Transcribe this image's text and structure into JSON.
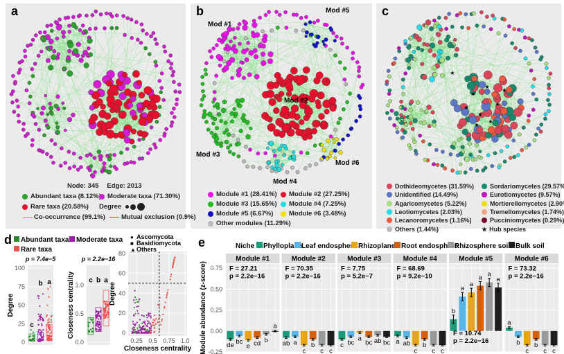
{
  "panel_labels": [
    "a",
    "b",
    "c",
    "d",
    "e"
  ],
  "panel_a": {
    "summary": {
      "node": "Node: 345",
      "edge": "Edge: 2013"
    },
    "legend": [
      {
        "label": "Abundant taxa  (8.12%)",
        "color": "#2ca02c"
      },
      {
        "label": "Moderate taxa (71.30%)",
        "color": "#d41cd4"
      },
      {
        "label": "Rare taxa (20.58%)",
        "color": "#e8112d"
      }
    ],
    "degree_label": "Degree",
    "edges": [
      {
        "label": "Co-occurrence (99.1%)",
        "color": "#33dd33"
      },
      {
        "label": "Mutual exclusion (0.9%)",
        "color": "#e83030"
      }
    ]
  },
  "panel_b": {
    "module_labels": [
      "Mod #1",
      "Mod #2",
      "Mod #3",
      "Mod #4",
      "Mod #5",
      "Mod #6"
    ],
    "legend": [
      {
        "label": "Module #1 (28.41%)",
        "color": "#ee11ee"
      },
      {
        "label": "Module #2 (27.25%)",
        "color": "#e8112d"
      },
      {
        "label": "Module #3 (15.65%)",
        "color": "#22bb22"
      },
      {
        "label": "Module #4 (7.25%)",
        "color": "#22dddd"
      },
      {
        "label": "Module #5 (6.67%)",
        "color": "#1111cc"
      },
      {
        "label": "Module #6 (3.48%)",
        "color": "#f5e000"
      },
      {
        "label": "Other modules (11.29%)",
        "color": "#bbbbbb"
      }
    ]
  },
  "panel_c": {
    "legend": [
      {
        "label": "Dothideomycetes (31.59%)",
        "color": "#d9465a"
      },
      {
        "label": "Sordariomycetes (29.57%)",
        "color": "#178a6e"
      },
      {
        "label": "Unidentified (14.49%)",
        "color": "#5b78c8"
      },
      {
        "label": "Eurotiomycetes (9.57%)",
        "color": "#c010c0"
      },
      {
        "label": "Agaricomycetes (5.22%)",
        "color": "#a4e080"
      },
      {
        "label": "Mortierellomycetes (2.90%)",
        "color": "#f0e000"
      },
      {
        "label": "Leotiomycetes (2.03%)",
        "color": "#22e0f0"
      },
      {
        "label": "Tremellomycetes (1.74%)",
        "color": "#f0a888"
      },
      {
        "label": "Lecanoromycetes (1.16%)",
        "color": "#f05a3c"
      },
      {
        "label": "Pucciniomycetes (0.29%)",
        "color": "#7a0a2a"
      },
      {
        "label": "Others (1.44%)",
        "color": "#bbbbbb"
      }
    ],
    "hub_label": "Hub species"
  },
  "chart_data": [
    {
      "type": "box",
      "panel": "d",
      "legend": [
        {
          "name": "Abundant taxa",
          "color": "#2e8b2e"
        },
        {
          "name": "Moderate taxa",
          "color": "#9b1fa0"
        },
        {
          "name": "Rare taxa",
          "color": "#f05050"
        }
      ],
      "plots": [
        {
          "ylabel": "Degree",
          "stat": "p = 7.4e−5",
          "ylim": [
            0,
            100
          ],
          "yticks": [
            "0",
            "25",
            "50",
            "75",
            "100"
          ],
          "letters": [
            "c",
            "b",
            "a"
          ],
          "medians": [
            7,
            8,
            15
          ],
          "maxima": [
            17,
            73,
            75
          ]
        },
        {
          "ylabel": "Closeness centrality",
          "stat": "p = 2.2e−16",
          "ylim": [
            0,
            1.3
          ],
          "yticks": [
            "0.0",
            "0.5",
            "1.0"
          ],
          "letters": [
            "c",
            "b",
            "a"
          ],
          "medians": [
            0.27,
            0.38,
            0.57
          ],
          "maxima": [
            1.0,
            1.0,
            1.0
          ]
        }
      ]
    },
    {
      "type": "scatter",
      "panel": "d",
      "xlabel": "Closeness centrality",
      "ylabel": "Degree",
      "xlim": [
        0.12,
        1.03
      ],
      "ylim": [
        -3,
        82
      ],
      "xticks": [
        "0.25",
        "0.5",
        "0.75",
        "1.0"
      ],
      "yticks": [
        "0",
        "20",
        "40",
        "60",
        "80"
      ],
      "shape_legend": [
        "Ascomycota",
        "Basidiomycota",
        "Others"
      ],
      "thresholds": {
        "x": 0.6,
        "y": 50
      }
    },
    {
      "type": "bar",
      "panel": "e",
      "legend_title": "Niche",
      "ylabel": "Module abundance (z-score)",
      "ylim": [
        -0.25,
        0.8
      ],
      "yticks": [
        "-0.25",
        "0.00",
        "0.25",
        "0.50",
        "0.75"
      ],
      "categories": [
        "Phylloplane",
        "Leaf endosphere",
        "Rhizoplane",
        "Root endosphere",
        "Rhizosphere soil",
        "Bulk soil"
      ],
      "colors": [
        "#1a9a78",
        "#5ab4e6",
        "#e6a516",
        "#d3600e",
        "#9a9a9a",
        "#1e1e1e"
      ],
      "facets": [
        {
          "name": "Module #1",
          "F": "F = 27.21",
          "p": "p = 2.2e−16",
          "values": [
            -0.1,
            -0.06,
            -0.11,
            -0.08,
            -0.04,
            0.0
          ],
          "letters": [
            "de",
            "bc",
            "e",
            "cd",
            "b",
            "a"
          ]
        },
        {
          "name": "Module #2",
          "F": "F = 70.35",
          "p": "p = 2.2e−16",
          "values": [
            -0.08,
            -0.07,
            -0.17,
            -0.1,
            -0.17,
            -0.17
          ],
          "letters": [
            "ab",
            "a",
            "c",
            "b",
            "c",
            "c"
          ]
        },
        {
          "name": "Module #3",
          "F": "F = 7.75",
          "p": "p = 5.2e−7",
          "values": [
            -0.1,
            -0.07,
            -0.02,
            -0.07,
            -0.05,
            -0.07
          ],
          "letters": [
            "c",
            "bc",
            "a",
            "bc",
            "ab",
            "bc"
          ]
        },
        {
          "name": "Module #4",
          "F": "F = 68.69",
          "p": "p = 9.2e−10",
          "values": [
            -0.06,
            -0.08,
            -0.17,
            -0.1,
            -0.17,
            -0.17
          ],
          "letters": [
            "a",
            "ab",
            "c",
            "b",
            "c",
            "c"
          ]
        },
        {
          "name": "Module #5",
          "F": "F = 10.74",
          "p": "p = 2.2e−16",
          "values": [
            0.14,
            0.41,
            0.46,
            0.54,
            0.58,
            0.52
          ],
          "letters": [
            "b",
            "a",
            "a",
            "a",
            "a",
            "a"
          ]
        },
        {
          "name": "Module #6",
          "F": "F = 73.32",
          "p": "p = 2.2e−16",
          "values": [
            0.04,
            -0.07,
            -0.17,
            -0.1,
            -0.17,
            -0.17
          ],
          "letters": [
            "a",
            "b",
            "c",
            "b",
            "c",
            "c"
          ]
        }
      ]
    }
  ]
}
